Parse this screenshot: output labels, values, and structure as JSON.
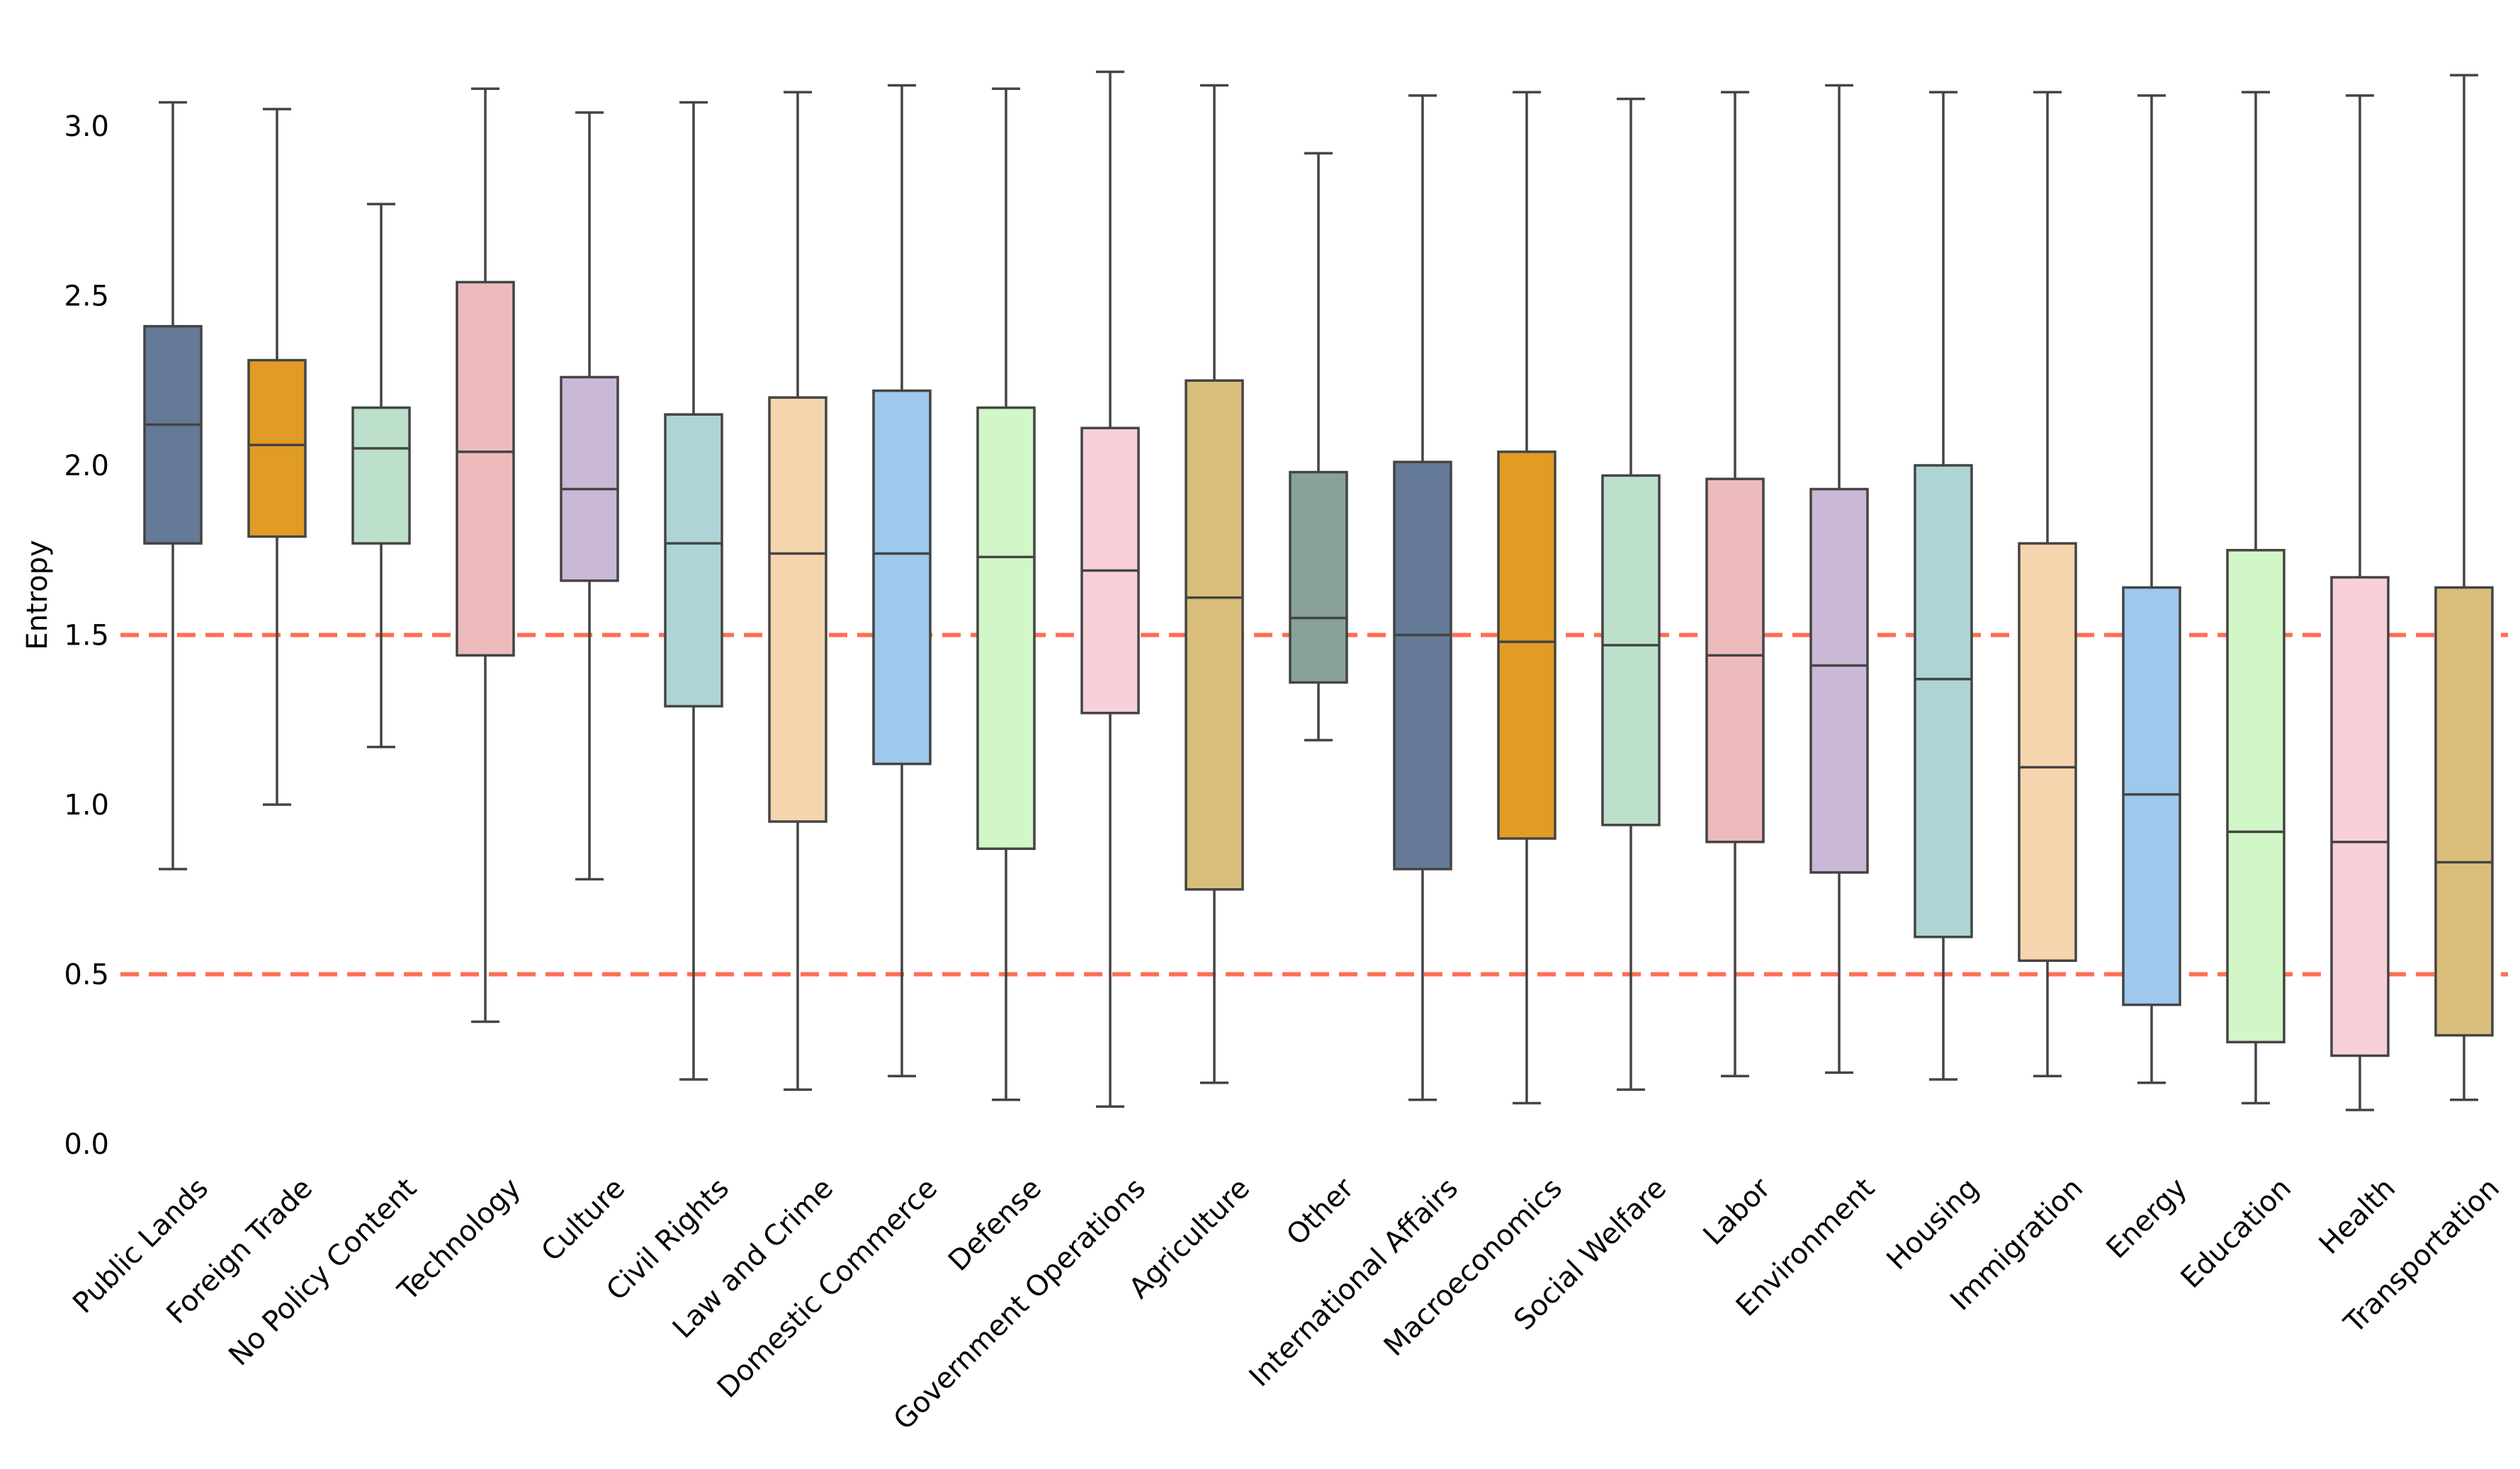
{
  "chart_data": {
    "type": "box",
    "ylabel": "Entropy",
    "ylim": [
      0.0,
      3.2
    ],
    "yticks": [
      "0.0",
      "0.5",
      "1.0",
      "1.5",
      "2.0",
      "2.5",
      "3.0"
    ],
    "reference_lines": [
      {
        "y": 1.5,
        "color": "#FF6E54",
        "style": "dashed"
      },
      {
        "y": 0.5,
        "color": "#FF6E54",
        "style": "dashed"
      }
    ],
    "grid": false,
    "series": [
      {
        "category": "Public Lands",
        "color": "#647A96",
        "whisker_low": 0.81,
        "q1": 1.77,
        "median": 2.12,
        "q3": 2.41,
        "whisker_high": 3.07
      },
      {
        "category": "Foreign Trade",
        "color": "#E09C24",
        "whisker_low": 1.0,
        "q1": 1.79,
        "median": 2.06,
        "q3": 2.31,
        "whisker_high": 3.05
      },
      {
        "category": "No Policy Content",
        "color": "#BCE0CB",
        "whisker_low": 1.17,
        "q1": 1.77,
        "median": 2.05,
        "q3": 2.17,
        "whisker_high": 2.77
      },
      {
        "category": "Technology",
        "color": "#EDBBBC",
        "whisker_low": 0.36,
        "q1": 1.44,
        "median": 2.04,
        "q3": 2.54,
        "whisker_high": 3.11
      },
      {
        "category": "Culture",
        "color": "#CAB8D7",
        "whisker_low": 0.78,
        "q1": 1.66,
        "median": 1.93,
        "q3": 2.26,
        "whisker_high": 3.04
      },
      {
        "category": "Civil Rights",
        "color": "#AED4D5",
        "whisker_low": 0.19,
        "q1": 1.29,
        "median": 1.77,
        "q3": 2.15,
        "whisker_high": 3.07
      },
      {
        "category": "Law and Crime",
        "color": "#F5D5AE",
        "whisker_low": 0.16,
        "q1": 0.95,
        "median": 1.74,
        "q3": 2.2,
        "whisker_high": 3.1
      },
      {
        "category": "Domestic Commerce",
        "color": "#9EC8EC",
        "whisker_low": 0.2,
        "q1": 1.12,
        "median": 1.74,
        "q3": 2.22,
        "whisker_high": 3.12
      },
      {
        "category": "Defense",
        "color": "#D1F6C7",
        "whisker_low": 0.13,
        "q1": 0.87,
        "median": 1.73,
        "q3": 2.17,
        "whisker_high": 3.11
      },
      {
        "category": "Government Operations",
        "color": "#F7D0DA",
        "whisker_low": 0.11,
        "q1": 1.27,
        "median": 1.69,
        "q3": 2.11,
        "whisker_high": 3.16
      },
      {
        "category": "Agriculture",
        "color": "#D9BF7B",
        "whisker_low": 0.18,
        "q1": 0.75,
        "median": 1.61,
        "q3": 2.25,
        "whisker_high": 3.12
      },
      {
        "category": "Other",
        "color": "#88A29A",
        "whisker_low": 1.19,
        "q1": 1.36,
        "median": 1.55,
        "q3": 1.98,
        "whisker_high": 2.92
      },
      {
        "category": "International Affairs",
        "color": "#647A96",
        "whisker_low": 0.13,
        "q1": 0.81,
        "median": 1.5,
        "q3": 2.01,
        "whisker_high": 3.09
      },
      {
        "category": "Macroeconomics",
        "color": "#E09C24",
        "whisker_low": 0.12,
        "q1": 0.9,
        "median": 1.48,
        "q3": 2.04,
        "whisker_high": 3.1
      },
      {
        "category": "Social Welfare",
        "color": "#BCE0CB",
        "whisker_low": 0.16,
        "q1": 0.94,
        "median": 1.47,
        "q3": 1.97,
        "whisker_high": 3.08
      },
      {
        "category": "Labor",
        "color": "#EDBBBC",
        "whisker_low": 0.2,
        "q1": 0.89,
        "median": 1.44,
        "q3": 1.96,
        "whisker_high": 3.1
      },
      {
        "category": "Environment",
        "color": "#CAB8D7",
        "whisker_low": 0.21,
        "q1": 0.8,
        "median": 1.41,
        "q3": 1.93,
        "whisker_high": 3.12
      },
      {
        "category": "Housing",
        "color": "#AED4D5",
        "whisker_low": 0.19,
        "q1": 0.61,
        "median": 1.37,
        "q3": 2.0,
        "whisker_high": 3.1
      },
      {
        "category": "Immigration",
        "color": "#F5D5AE",
        "whisker_low": 0.2,
        "q1": 0.54,
        "median": 1.11,
        "q3": 1.77,
        "whisker_high": 3.1
      },
      {
        "category": "Energy",
        "color": "#9EC8EC",
        "whisker_low": 0.18,
        "q1": 0.41,
        "median": 1.03,
        "q3": 1.64,
        "whisker_high": 3.09
      },
      {
        "category": "Education",
        "color": "#D1F6C7",
        "whisker_low": 0.12,
        "q1": 0.3,
        "median": 0.92,
        "q3": 1.75,
        "whisker_high": 3.1
      },
      {
        "category": "Health",
        "color": "#F7D0DA",
        "whisker_low": 0.1,
        "q1": 0.26,
        "median": 0.89,
        "q3": 1.67,
        "whisker_high": 3.09
      },
      {
        "category": "Transportation",
        "color": "#D9BF7B",
        "whisker_low": 0.13,
        "q1": 0.32,
        "median": 0.83,
        "q3": 1.64,
        "whisker_high": 3.15
      }
    ]
  }
}
